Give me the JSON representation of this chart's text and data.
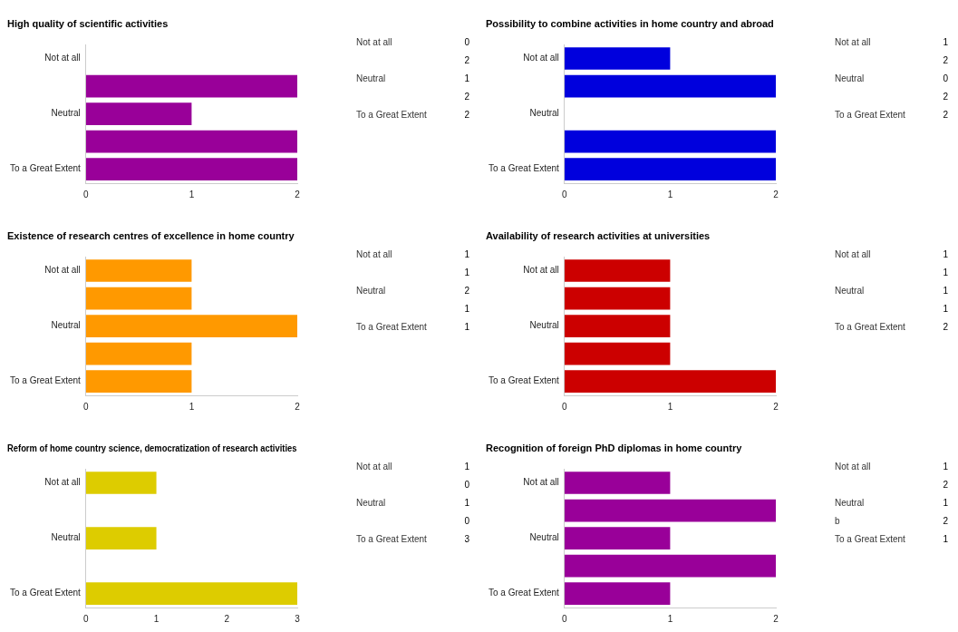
{
  "chart_data": [
    {
      "type": "bar",
      "orientation": "horizontal",
      "title": "High quality of scientific activities",
      "categories": [
        "Not at all",
        null,
        "Neutral",
        null,
        "To a Great Extent"
      ],
      "values": [
        0,
        2,
        1,
        2,
        2
      ],
      "color": "#990099",
      "xlim": [
        0,
        2
      ],
      "xticks": [
        0,
        1,
        2
      ],
      "grid": false,
      "annotations": [
        "Not at all",
        "0",
        "2",
        "Neutral",
        "1",
        "2",
        "To a Great Extent",
        "2"
      ]
    },
    {
      "type": "bar",
      "orientation": "horizontal",
      "title": "Possibility to combine activities in home country and abroad",
      "categories": [
        "Not at all",
        null,
        "Neutral",
        null,
        "To a Great Extent"
      ],
      "values": [
        1,
        2,
        0,
        2,
        2
      ],
      "color": "#0000dd",
      "xlim": [
        0,
        2
      ],
      "xticks": [
        0,
        1,
        2
      ],
      "grid": false,
      "annotations": [
        "Not at all",
        "1",
        "2",
        "Neutral",
        "0",
        "2",
        "To a Great Extent",
        "2"
      ]
    },
    {
      "type": "bar",
      "orientation": "horizontal",
      "title": "Existence of research centres of excellence in home country",
      "categories": [
        "Not at all",
        null,
        "Neutral",
        null,
        "To a Great Extent"
      ],
      "values": [
        1,
        1,
        2,
        1,
        1
      ],
      "color": "#ff9900",
      "xlim": [
        0,
        2
      ],
      "xticks": [
        0,
        1,
        2
      ],
      "grid": false,
      "annotations": [
        "Not at all",
        "1",
        "1",
        "Neutral",
        "2",
        "1",
        "To a Great Extent",
        "1"
      ]
    },
    {
      "type": "bar",
      "orientation": "horizontal",
      "title": "Availability of research activities at universities",
      "categories": [
        "Not at all",
        null,
        "Neutral",
        null,
        "To a Great Extent"
      ],
      "values": [
        1,
        1,
        1,
        1,
        2
      ],
      "color": "#cc0000",
      "xlim": [
        0,
        2
      ],
      "xticks": [
        0,
        1,
        2
      ],
      "grid": false,
      "annotations": [
        "Not at all",
        "1",
        "1",
        "Neutral",
        "1",
        "1",
        "To a Great Extent",
        "2"
      ]
    },
    {
      "type": "bar",
      "orientation": "horizontal",
      "title": "Reform of home country science, democratization of research activities",
      "categories": [
        "Not at all",
        null,
        "Neutral",
        null,
        "To a Great Extent"
      ],
      "values": [
        1,
        0,
        1,
        0,
        3
      ],
      "color": "#ddcc00",
      "xlim": [
        0,
        3
      ],
      "xticks": [
        0,
        1,
        2,
        3
      ],
      "grid": false,
      "annotations": [
        "Not at all",
        "1",
        "0",
        "Neutral",
        "1",
        "0",
        "To a Great Extent",
        "3"
      ]
    },
    {
      "type": "bar",
      "orientation": "horizontal",
      "title": "Recognition of foreign PhD diplomas in home country",
      "categories": [
        "Not at all",
        null,
        "Neutral",
        null,
        "To a Great Extent"
      ],
      "values": [
        1,
        2,
        1,
        2,
        1
      ],
      "color": "#990099",
      "xlim": [
        0,
        2
      ],
      "xticks": [
        0,
        1,
        2
      ],
      "grid": false,
      "annotations": [
        "Not at all",
        "1",
        "2",
        "Neutral",
        "1",
        "b",
        "2",
        "To a Great Extent",
        "1"
      ]
    }
  ]
}
